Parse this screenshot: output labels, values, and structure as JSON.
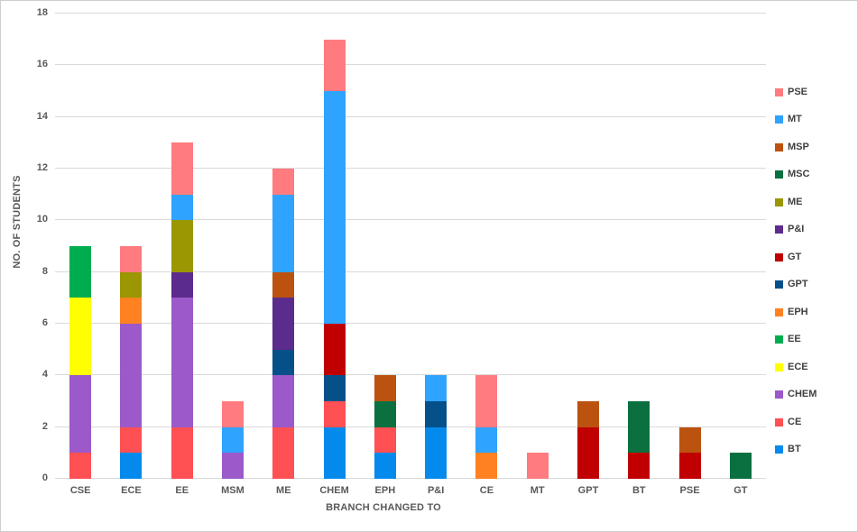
{
  "chart_data": {
    "type": "bar",
    "stacked": true,
    "title": "",
    "xlabel": "BRANCH CHANGED TO",
    "ylabel": "NO. OF STUDENTS",
    "ylim": [
      0,
      18
    ],
    "ytick_step": 2,
    "grid": true,
    "legend_position": "right",
    "categories": [
      "CSE",
      "ECE",
      "EE",
      "MSM",
      "ME",
      "CHEM",
      "EPH",
      "P&I",
      "CE",
      "MT",
      "GPT",
      "BT",
      "PSE",
      "GT"
    ],
    "series": [
      {
        "name": "BT",
        "color": "#048AEC",
        "values": [
          0,
          1,
          0,
          0,
          0,
          2,
          1,
          2,
          0,
          0,
          0,
          0,
          0,
          0
        ]
      },
      {
        "name": "CE",
        "color": "#FF5053",
        "values": [
          1,
          1,
          2,
          0,
          2,
          1,
          1,
          0,
          0,
          0,
          0,
          0,
          0,
          0
        ]
      },
      {
        "name": "CHEM",
        "color": "#9B59C9",
        "values": [
          3,
          4,
          5,
          1,
          2,
          0,
          0,
          0,
          0,
          0,
          0,
          0,
          0,
          0
        ]
      },
      {
        "name": "ECE",
        "color": "#FFFF00",
        "values": [
          3,
          0,
          0,
          0,
          0,
          0,
          0,
          0,
          0,
          0,
          0,
          0,
          0,
          0
        ]
      },
      {
        "name": "EE",
        "color": "#00AC50",
        "values": [
          2,
          0,
          0,
          0,
          0,
          0,
          0,
          0,
          0,
          0,
          0,
          0,
          0,
          0
        ]
      },
      {
        "name": "EPH",
        "color": "#FF8122",
        "values": [
          0,
          1,
          0,
          0,
          0,
          0,
          0,
          0,
          1,
          0,
          0,
          0,
          0,
          0
        ]
      },
      {
        "name": "GPT",
        "color": "#055089",
        "values": [
          0,
          0,
          0,
          0,
          1,
          1,
          0,
          1,
          0,
          0,
          0,
          0,
          0,
          0
        ]
      },
      {
        "name": "GT",
        "color": "#C00000",
        "values": [
          0,
          0,
          0,
          0,
          0,
          2,
          0,
          0,
          0,
          0,
          2,
          1,
          1,
          0
        ]
      },
      {
        "name": "P&I",
        "color": "#5B2B8D",
        "values": [
          0,
          0,
          1,
          0,
          2,
          0,
          0,
          0,
          0,
          0,
          0,
          0,
          0,
          0
        ]
      },
      {
        "name": "ME",
        "color": "#9A9702",
        "values": [
          0,
          1,
          2,
          0,
          0,
          0,
          0,
          0,
          0,
          0,
          0,
          0,
          0,
          0
        ]
      },
      {
        "name": "MSC",
        "color": "#0B7040",
        "values": [
          0,
          0,
          0,
          0,
          0,
          0,
          1,
          0,
          0,
          0,
          0,
          2,
          0,
          1
        ]
      },
      {
        "name": "MSP",
        "color": "#BB5210",
        "values": [
          0,
          0,
          0,
          0,
          1,
          0,
          1,
          0,
          0,
          0,
          1,
          0,
          1,
          0
        ]
      },
      {
        "name": "MT",
        "color": "#2EA3FF",
        "values": [
          0,
          0,
          1,
          1,
          3,
          9,
          0,
          1,
          1,
          0,
          0,
          0,
          0,
          0
        ]
      },
      {
        "name": "PSE",
        "color": "#FF7B7F",
        "values": [
          0,
          1,
          2,
          1,
          1,
          2,
          0,
          0,
          2,
          1,
          0,
          0,
          0,
          0
        ]
      }
    ],
    "legend_order_top_to_bottom": [
      "PSE",
      "MT",
      "MSP",
      "MSC",
      "ME",
      "P&I",
      "GT",
      "GPT",
      "EPH",
      "EE",
      "ECE",
      "CHEM",
      "CE",
      "BT"
    ],
    "ytick_labels": [
      "0",
      "2",
      "4",
      "6",
      "8",
      "10",
      "12",
      "14",
      "16",
      "18"
    ]
  },
  "style": {
    "gridline_color": "#d9d9d9",
    "tick_label_color": "#595959",
    "legend_label_color": "#404040",
    "background": "#ffffff"
  }
}
